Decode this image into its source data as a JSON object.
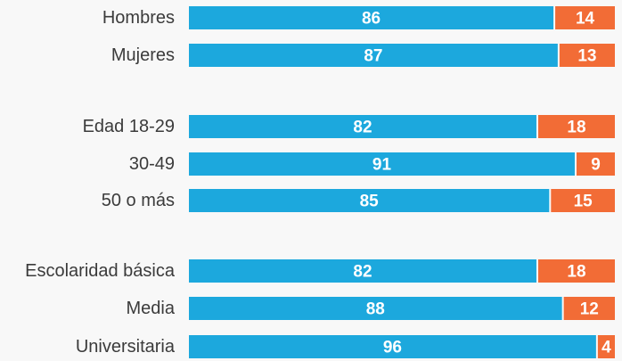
{
  "chart_data": {
    "type": "bar",
    "orientation": "horizontal",
    "stacked": true,
    "grid": false,
    "legend": "none",
    "xlim": [
      0,
      100
    ],
    "categories": [
      "Hombres",
      "Mujeres",
      "Edad 18-29",
      "30-49",
      "50 o más",
      "Escolaridad básica",
      "Media",
      "Universitaria"
    ],
    "groups": [
      [
        "Hombres",
        "Mujeres"
      ],
      [
        "Edad 18-29",
        "30-49",
        "50 o más"
      ],
      [
        "Escolaridad básica",
        "Media",
        "Universitaria"
      ]
    ],
    "series": [
      {
        "values": [
          86,
          87,
          82,
          91,
          85,
          82,
          88,
          96
        ],
        "color": "#1ca8dd"
      },
      {
        "values": [
          14,
          13,
          18,
          9,
          15,
          18,
          12,
          4
        ],
        "color": "#f26c36"
      }
    ],
    "data_labels": true
  }
}
